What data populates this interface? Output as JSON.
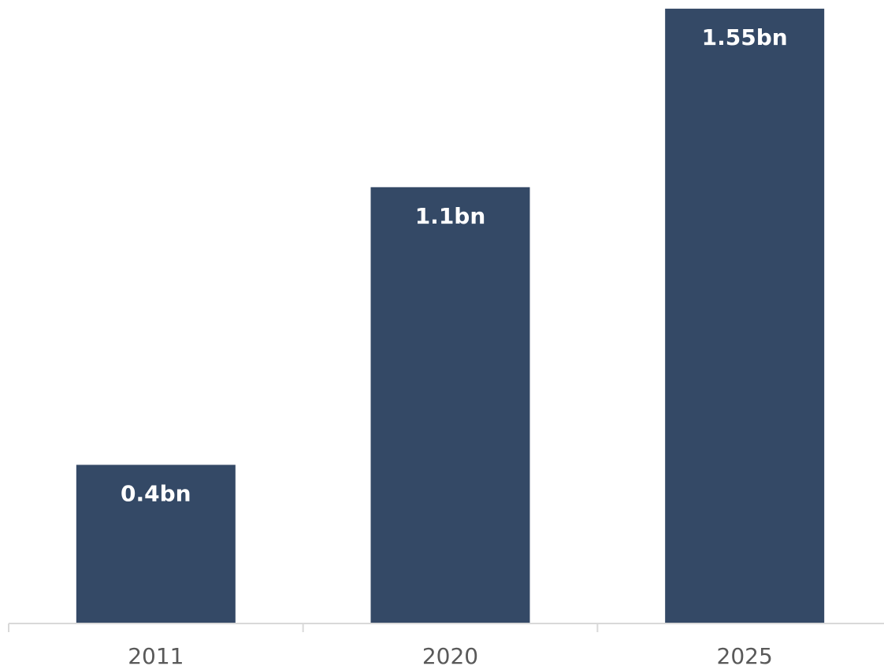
{
  "chart_data": {
    "type": "bar",
    "categories": [
      "2011",
      "2020",
      "2025"
    ],
    "values": [
      0.4,
      1.1,
      1.55
    ],
    "data_labels": [
      "0.4bn",
      "1.1bn",
      "1.55bn"
    ],
    "ylim": [
      0,
      1.56
    ],
    "grid": false,
    "legend": "none",
    "colors": {
      "bar": "#344966",
      "axis": "#d9d9d9",
      "tick_text": "#595959",
      "label_text": "#ffffff"
    }
  }
}
